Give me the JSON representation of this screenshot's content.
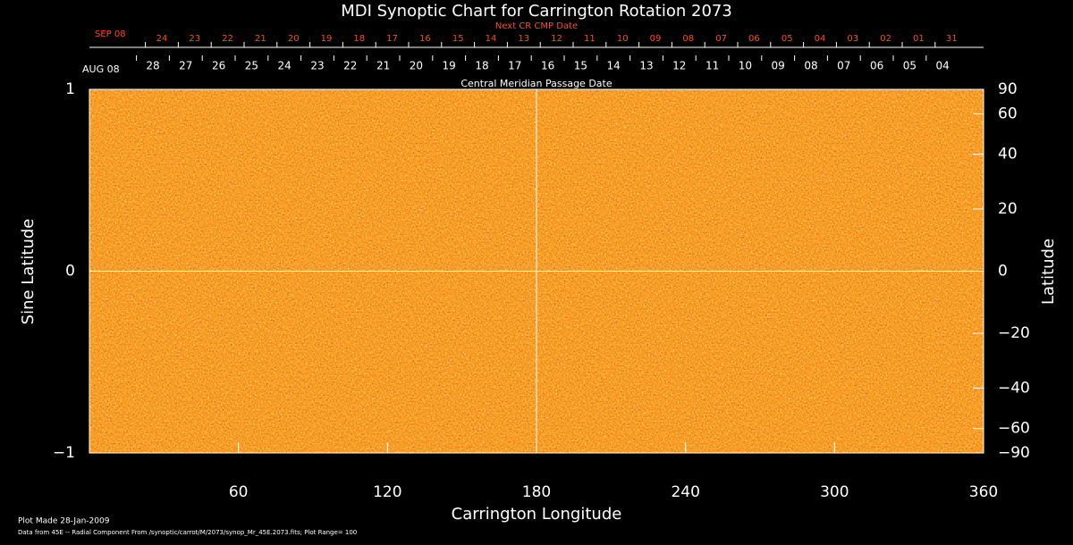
{
  "chart_data": {
    "type": "synoptic",
    "title": "MDI Synoptic Chart for Carrington Rotation 2073",
    "x_label": "Carrington Longitude",
    "y_label": "Sine Latitude",
    "y2_label": "Latitude",
    "xlim": [
      0,
      360
    ],
    "xticks": [
      60,
      120,
      180,
      240,
      300,
      360
    ],
    "ylim": [
      -1,
      1
    ],
    "yticks": [
      {
        "value": -1,
        "label": "−1"
      },
      0,
      1
    ],
    "y2lim": [
      -90,
      90
    ],
    "y2scale": "sine",
    "y2ticks": [
      90,
      60,
      40,
      20,
      0,
      {
        "value": -20,
        "label": "−20"
      },
      {
        "value": -40,
        "label": "−40"
      },
      {
        "value": -60,
        "label": "−60"
      },
      {
        "value": -90,
        "label": "−90"
      }
    ],
    "next_cr_axis": {
      "title": "Next CR CMP Date",
      "month": "SEP 08",
      "days": [
        "24",
        "23",
        "22",
        "21",
        "20",
        "19",
        "18",
        "17",
        "16",
        "15",
        "14",
        "13",
        "12",
        "11",
        "10",
        "09",
        "08",
        "07",
        "06",
        "05",
        "04",
        "03",
        "02",
        "01",
        "31"
      ]
    },
    "cmp_axis": {
      "title": "Central Meridian Passage Date",
      "month": "AUG 08",
      "days": [
        "28",
        "27",
        "26",
        "25",
        "24",
        "23",
        "22",
        "21",
        "20",
        "19",
        "18",
        "17",
        "16",
        "15",
        "14",
        "13",
        "12",
        "11",
        "10",
        "09",
        "08",
        "07",
        "06",
        "05",
        "04"
      ]
    },
    "notes": [
      "Plot Made 28-Jan-2009",
      "Data from 45E -- Radial Component From /synoptic/carrot/M/2073/synop_Mr_45E.2073.fits; Plot Range= 100"
    ]
  }
}
